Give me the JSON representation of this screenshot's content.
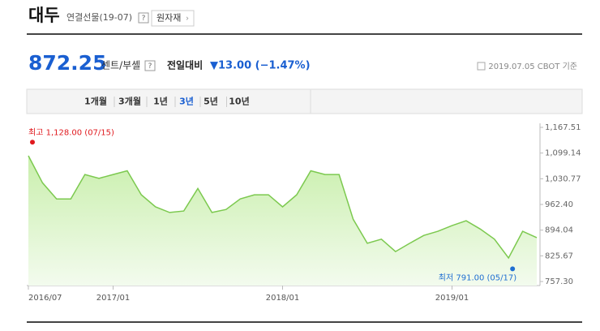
{
  "header": {
    "title": "대두",
    "subtitle": "연결선물(19-07)",
    "help": "?",
    "button": "원자재"
  },
  "quote": {
    "price": "872.25",
    "unit": "센트/부셸",
    "help": "?",
    "change_label": "전일대비",
    "change": "▼13.00 (−1.47%)",
    "as_of": "2019.07.05 CBOT 기준"
  },
  "tabs": [
    "1개월",
    "3개월",
    "1년",
    "3년",
    "5년",
    "10년"
  ],
  "active_tab": "3년",
  "chart_data": {
    "type": "area",
    "color": "#7cc94f",
    "fill_color": "#c9efac",
    "x": [
      "2016/07",
      "2016/08",
      "2016/09",
      "2016/10",
      "2016/11",
      "2016/12",
      "2017/01",
      "2017/02",
      "2017/03",
      "2017/04",
      "2017/05",
      "2017/06",
      "2017/07",
      "2017/08",
      "2017/09",
      "2017/10",
      "2017/11",
      "2017/12",
      "2018/01",
      "2018/02",
      "2018/03",
      "2018/04",
      "2018/05",
      "2018/06",
      "2018/07",
      "2018/08",
      "2018/09",
      "2018/10",
      "2018/11",
      "2018/12",
      "2019/01",
      "2019/02",
      "2019/03",
      "2019/04",
      "2019/05",
      "2019/06",
      "2019/07"
    ],
    "values": [
      1092,
      1020,
      977,
      977,
      1042,
      1032,
      1042,
      1052,
      988,
      956,
      941,
      945,
      1005,
      941,
      949,
      977,
      988,
      988,
      956,
      988,
      1052,
      1042,
      1042,
      923,
      859,
      870,
      837,
      859,
      880,
      891,
      906,
      919,
      897,
      870,
      820,
      891,
      874
    ],
    "xlim": [
      "2016/07",
      "2019/07"
    ],
    "xticks": [
      "2016/07",
      "2017/01",
      "2018/01",
      "2019/01"
    ],
    "ylim": [
      757.3,
      1167.51
    ],
    "yticks": [
      {
        "value": 1167.51,
        "label": "1,167.51"
      },
      {
        "value": 1099.14,
        "label": "1,099.14"
      },
      {
        "value": 1030.77,
        "label": "1,030.77"
      },
      {
        "value": 962.4,
        "label": "962.40"
      },
      {
        "value": 894.04,
        "label": "894.04"
      },
      {
        "value": 825.67,
        "label": "825.67"
      },
      {
        "value": 757.3,
        "label": "757.30"
      }
    ],
    "annotations": [
      {
        "text": "최고 1,128.00 (07/15)",
        "value": 1128,
        "x": "2016/07",
        "color": "#e0191e"
      },
      {
        "text": "최저 791.00 (05/17)",
        "value": 791,
        "x": "2019/05",
        "color": "#1f6fd1"
      }
    ]
  }
}
